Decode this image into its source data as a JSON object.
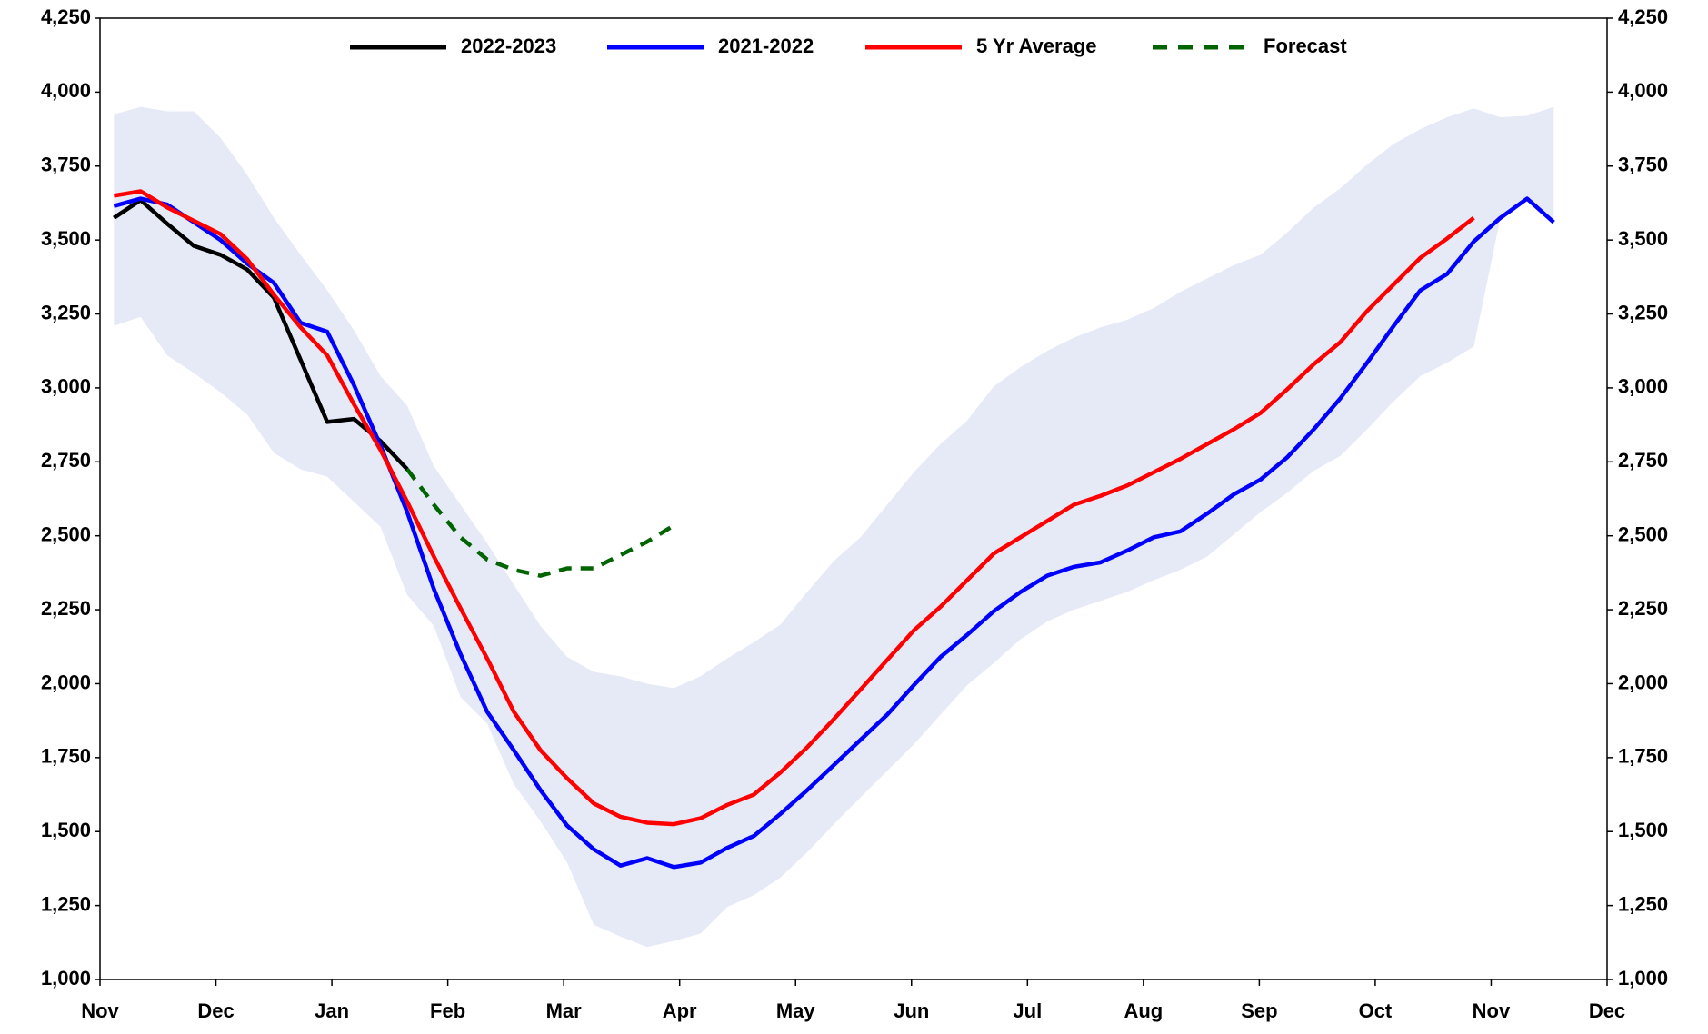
{
  "chart_data": {
    "type": "line",
    "x": [
      0.12,
      0.35,
      0.58,
      0.81,
      1.04,
      1.27,
      1.5,
      1.73,
      1.96,
      2.19,
      2.42,
      2.65,
      2.88,
      3.11,
      3.34,
      3.57,
      3.8,
      4.03,
      4.26,
      4.49,
      4.72,
      4.95,
      5.18,
      5.41,
      5.64,
      5.87,
      6.1,
      6.33,
      6.56,
      6.79,
      7.02,
      7.25,
      7.48,
      7.71,
      7.94,
      8.17,
      8.4,
      8.63,
      8.86,
      9.09,
      9.32,
      9.55,
      9.78,
      10.01,
      10.24,
      10.47,
      10.7,
      10.93,
      11.16,
      11.39,
      11.62,
      11.85,
      12.08,
      12.31,
      12.54
    ],
    "xlim": [
      0,
      13
    ],
    "xticks": [
      {
        "value": 0,
        "label": "Nov"
      },
      {
        "value": 1,
        "label": "Dec"
      },
      {
        "value": 2,
        "label": "Jan"
      },
      {
        "value": 3,
        "label": "Feb"
      },
      {
        "value": 4,
        "label": "Mar"
      },
      {
        "value": 5,
        "label": "Apr"
      },
      {
        "value": 6,
        "label": "May"
      },
      {
        "value": 7,
        "label": "Jun"
      },
      {
        "value": 8,
        "label": "Jul"
      },
      {
        "value": 9,
        "label": "Aug"
      },
      {
        "value": 10,
        "label": "Sep"
      },
      {
        "value": 11,
        "label": "Oct"
      },
      {
        "value": 12,
        "label": "Nov"
      },
      {
        "value": 13,
        "label": "Dec"
      }
    ],
    "ylim": [
      1000,
      4250
    ],
    "yticks": [
      {
        "value": 1000,
        "label": "1,000"
      },
      {
        "value": 1250,
        "label": "1,250"
      },
      {
        "value": 1500,
        "label": "1,500"
      },
      {
        "value": 1750,
        "label": "1,750"
      },
      {
        "value": 2000,
        "label": "2,000"
      },
      {
        "value": 2250,
        "label": "2,250"
      },
      {
        "value": 2500,
        "label": "2,500"
      },
      {
        "value": 2750,
        "label": "2,750"
      },
      {
        "value": 3000,
        "label": "3,000"
      },
      {
        "value": 3250,
        "label": "3,250"
      },
      {
        "value": 3500,
        "label": "3,500"
      },
      {
        "value": 3750,
        "label": "3,750"
      },
      {
        "value": 4000,
        "label": "4,000"
      },
      {
        "value": 4250,
        "label": "4,250"
      }
    ],
    "y2lim": [
      1000,
      4250
    ],
    "y2ticks": [
      {
        "value": 1000,
        "label": "1,000"
      },
      {
        "value": 1250,
        "label": "1,250"
      },
      {
        "value": 1500,
        "label": "1,500"
      },
      {
        "value": 1750,
        "label": "1,750"
      },
      {
        "value": 2000,
        "label": "2,000"
      },
      {
        "value": 2250,
        "label": "2,250"
      },
      {
        "value": 2500,
        "label": "2,500"
      },
      {
        "value": 2750,
        "label": "2,750"
      },
      {
        "value": 3000,
        "label": "3,000"
      },
      {
        "value": 3250,
        "label": "3,250"
      },
      {
        "value": 3500,
        "label": "3,500"
      },
      {
        "value": 3750,
        "label": "3,750"
      },
      {
        "value": 4000,
        "label": "4,000"
      },
      {
        "value": 4250,
        "label": "4,250"
      }
    ],
    "grid": false,
    "legend": "top",
    "band": {
      "color": "#e6eaf7",
      "upper": [
        3925,
        3950,
        3935,
        3935,
        3845,
        3720,
        3575,
        3450,
        3330,
        3195,
        3040,
        2940,
        2735,
        2605,
        2475,
        2335,
        2195,
        2090,
        2040,
        2025,
        2000,
        1985,
        2025,
        2085,
        2140,
        2200,
        2310,
        2415,
        2495,
        2605,
        2715,
        2810,
        2890,
        3005,
        3070,
        3125,
        3170,
        3205,
        3230,
        3270,
        3325,
        3370,
        3415,
        3450,
        3525,
        3610,
        3675,
        3755,
        3825,
        3875,
        3915,
        3945,
        3915,
        3920,
        3950
      ],
      "lower": [
        3210,
        3240,
        3110,
        3050,
        2985,
        2910,
        2780,
        2725,
        2700,
        2615,
        2530,
        2300,
        2195,
        1955,
        1865,
        1660,
        1535,
        1395,
        1185,
        1145,
        1110,
        1130,
        1155,
        1245,
        1285,
        1345,
        1430,
        1525,
        1615,
        1705,
        1795,
        1895,
        1995,
        2070,
        2150,
        2210,
        2250,
        2280,
        2310,
        2350,
        2385,
        2430,
        2505,
        2580,
        2645,
        2720,
        2770,
        2860,
        2955,
        3040,
        3085,
        3140,
        3575,
        3640,
        3560
      ]
    },
    "series": [
      {
        "name": "2022-2023",
        "color": "#000000",
        "dash": false,
        "values": [
          3575,
          3635,
          3555,
          3480,
          3450,
          3400,
          3305,
          3095,
          2885,
          2895,
          2820,
          2725,
          null,
          null,
          null,
          null,
          null,
          null,
          null,
          null,
          null,
          null,
          null,
          null,
          null,
          null,
          null,
          null,
          null,
          null,
          null,
          null,
          null,
          null,
          null,
          null,
          null,
          null,
          null,
          null,
          null,
          null,
          null,
          null,
          null,
          null,
          null,
          null,
          null,
          null,
          null,
          null,
          null,
          null,
          null
        ]
      },
      {
        "name": "2021-2022",
        "color": "#0000ff",
        "dash": false,
        "values": [
          3615,
          3640,
          3620,
          3560,
          3500,
          3420,
          3355,
          3220,
          3190,
          3010,
          2805,
          2580,
          2320,
          2100,
          1905,
          1775,
          1640,
          1520,
          1440,
          1385,
          1410,
          1380,
          1395,
          1445,
          1485,
          1560,
          1640,
          1725,
          1810,
          1895,
          1995,
          2090,
          2165,
          2245,
          2310,
          2365,
          2395,
          2410,
          2450,
          2495,
          2515,
          2575,
          2640,
          2690,
          2765,
          2860,
          2965,
          3085,
          3210,
          3330,
          3385,
          3495,
          3575,
          3640,
          3560
        ]
      },
      {
        "name": "5 Yr Average",
        "color": "#ff0000",
        "dash": false,
        "values": [
          3650,
          3665,
          3610,
          3565,
          3520,
          3435,
          3315,
          3205,
          3110,
          2945,
          2790,
          2615,
          2430,
          2255,
          2085,
          1905,
          1775,
          1680,
          1595,
          1550,
          1530,
          1525,
          1545,
          1590,
          1625,
          1700,
          1785,
          1880,
          1980,
          2080,
          2180,
          2260,
          2350,
          2440,
          2495,
          2550,
          2605,
          2635,
          2670,
          2715,
          2760,
          2810,
          2860,
          2915,
          2995,
          3080,
          3155,
          3260,
          3350,
          3440,
          3505,
          3575,
          null,
          null,
          null
        ]
      },
      {
        "name": "Forecast",
        "color": "#006400",
        "dash": true,
        "values": [
          null,
          null,
          null,
          null,
          null,
          null,
          null,
          null,
          null,
          null,
          null,
          2725,
          2605,
          2495,
          2420,
          2385,
          2365,
          2390,
          2390,
          2435,
          2480,
          2535,
          null,
          null,
          null,
          null,
          null,
          null,
          null,
          null,
          null,
          null,
          null,
          null,
          null,
          null,
          null,
          null,
          null,
          null,
          null,
          null,
          null,
          null,
          null,
          null,
          null,
          null,
          null,
          null,
          null,
          null,
          null,
          null,
          null
        ]
      }
    ]
  }
}
